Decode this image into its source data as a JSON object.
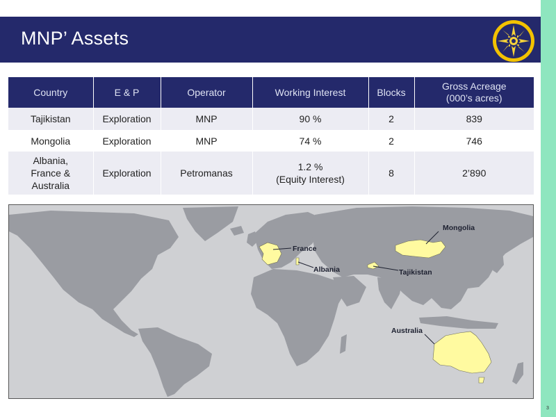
{
  "slide": {
    "title": "MNP’ Assets",
    "page_number": "3"
  },
  "table": {
    "headers": [
      "Country",
      "E & P",
      "Operator",
      "Working Interest",
      "Blocks",
      "Gross Acreage\n(000’s acres)"
    ],
    "rows": [
      [
        "Tajikistan",
        "Exploration",
        "MNP",
        "90 %",
        "2",
        "839"
      ],
      [
        "Mongolia",
        "Exploration",
        "MNP",
        "74 %",
        "2",
        "746"
      ],
      [
        "Albania,\nFrance &\nAustralia",
        "Exploration",
        "Petromanas",
        "1.2 %\n(Equity Interest)",
        "8",
        "2’890"
      ]
    ]
  },
  "map": {
    "labels": {
      "mongolia": "Mongolia",
      "france": "France",
      "albania": "Albania",
      "tajikistan": "Tajikistan",
      "australia": "Australia"
    }
  },
  "colors": {
    "header": "#24296b",
    "highlight": "#fffaa0",
    "ocean": "#cfd0d3",
    "land": "#9a9ca2",
    "accent_strip": "#8ee6bf"
  },
  "icons": {
    "logo": "sun-logo-icon"
  }
}
